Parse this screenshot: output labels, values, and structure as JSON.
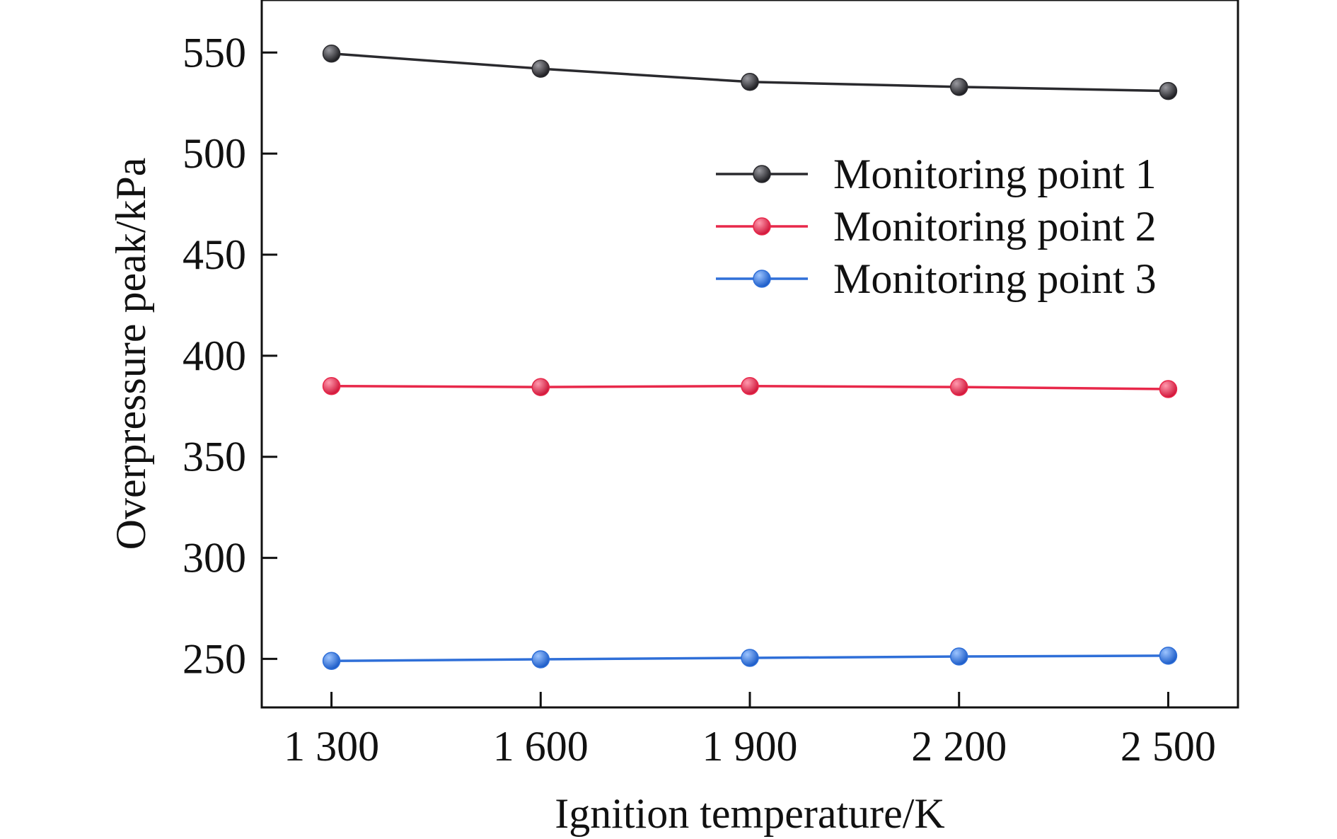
{
  "chart_data": {
    "type": "line",
    "title": "",
    "xlabel": "Ignition temperature/K",
    "ylabel": "Overpressure peak/kPa",
    "x": [
      1300,
      1600,
      1900,
      2200,
      2500
    ],
    "x_tick_labels": [
      "1 300",
      "1 600",
      "1 900",
      "2 200",
      "2 500"
    ],
    "y_ticks": [
      250,
      300,
      350,
      400,
      450,
      500,
      550
    ],
    "y_tick_labels": [
      "250",
      "300",
      "350",
      "400",
      "450",
      "500",
      "550"
    ],
    "xlim": [
      1200,
      2600
    ],
    "ylim": [
      226,
      576
    ],
    "grid": false,
    "legend_position": "top-right",
    "series": [
      {
        "name": "Monitoring point 1",
        "color": "#2a2a2e",
        "values": [
          549.5,
          542,
          535.5,
          533,
          531
        ]
      },
      {
        "name": "Monitoring point 2",
        "color": "#e8284a",
        "values": [
          385,
          384.5,
          385,
          384.5,
          383.5
        ]
      },
      {
        "name": "Monitoring point 3",
        "color": "#2f6fd8",
        "values": [
          249,
          249.8,
          250.5,
          251.2,
          251.6
        ]
      }
    ]
  }
}
